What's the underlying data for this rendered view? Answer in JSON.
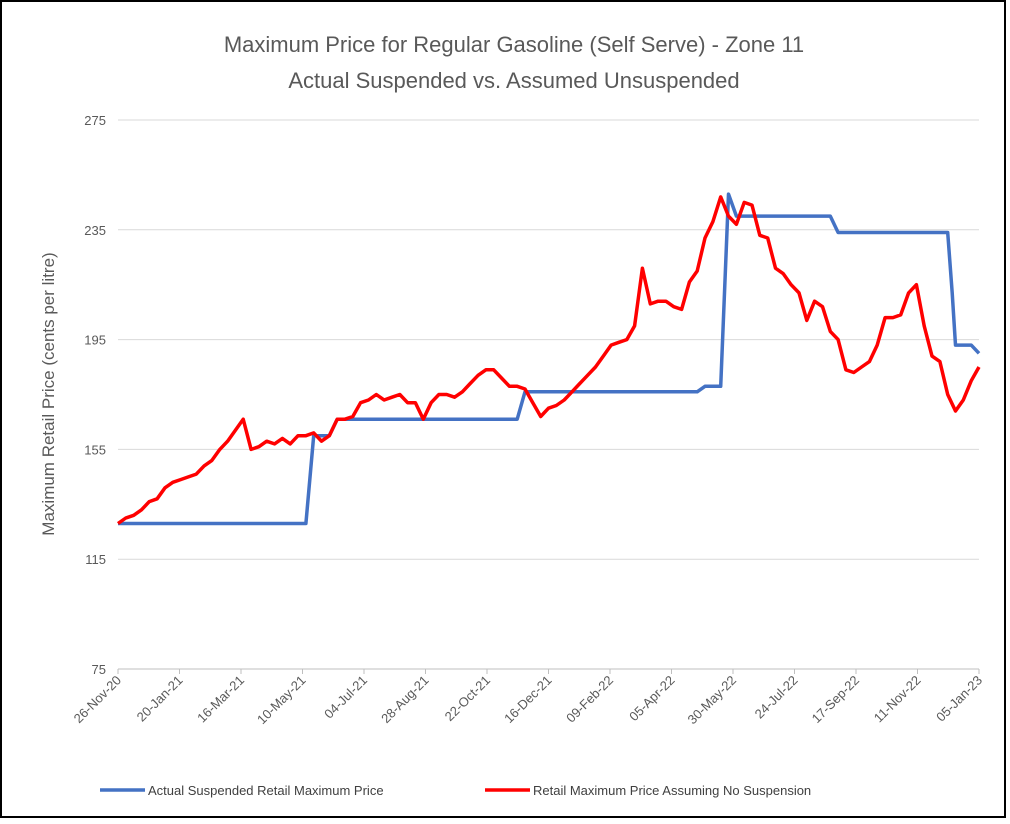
{
  "chart_data": {
    "type": "line",
    "title": "Maximum Price for Regular Gasoline (Self Serve) - Zone 11",
    "subtitle": "Actual Suspended vs. Assumed Unsuspended",
    "y_label": "Maximum Retail Price (cents per litre)",
    "xlim": [
      "2020-11-26",
      "2023-01-05"
    ],
    "xticks": [
      {
        "value": "2020-11-26",
        "label": "26-Nov-20"
      },
      {
        "value": "2021-01-20",
        "label": "20-Jan-21"
      },
      {
        "value": "2021-03-16",
        "label": "16-Mar-21"
      },
      {
        "value": "2021-05-10",
        "label": "10-May-21"
      },
      {
        "value": "2021-07-04",
        "label": "04-Jul-21"
      },
      {
        "value": "2021-08-28",
        "label": "28-Aug-21"
      },
      {
        "value": "2021-10-22",
        "label": "22-Oct-21"
      },
      {
        "value": "2021-12-16",
        "label": "16-Dec-21"
      },
      {
        "value": "2022-02-09",
        "label": "09-Feb-22"
      },
      {
        "value": "2022-04-05",
        "label": "05-Apr-22"
      },
      {
        "value": "2022-05-30",
        "label": "30-May-22"
      },
      {
        "value": "2022-07-24",
        "label": "24-Jul-22"
      },
      {
        "value": "2022-09-17",
        "label": "17-Sep-22"
      },
      {
        "value": "2022-11-11",
        "label": "11-Nov-22"
      },
      {
        "value": "2023-01-05",
        "label": "05-Jan-23"
      }
    ],
    "ylim": [
      75,
      275
    ],
    "yticks": [
      75,
      115,
      155,
      195,
      235,
      275
    ],
    "grid": true,
    "series": [
      {
        "name": "Actual Suspended Retail Maximum Price",
        "color": "#4472c4",
        "x": [
          "2020-11-26",
          "2021-05-13",
          "2021-05-20",
          "2021-06-03",
          "2021-06-10",
          "2021-11-18",
          "2021-11-25",
          "2022-04-28",
          "2022-05-05",
          "2022-05-19",
          "2022-05-26",
          "2022-06-02",
          "2022-08-25",
          "2022-09-01",
          "2022-12-08",
          "2022-12-12",
          "2022-12-15",
          "2022-12-29",
          "2023-01-05"
        ],
        "values": [
          128,
          128,
          160,
          160,
          166,
          166,
          176,
          176,
          178,
          178,
          248,
          240,
          240,
          234,
          234,
          212,
          193,
          193,
          190
        ]
      },
      {
        "name": "Retail Maximum Price Assuming No Suspension",
        "color": "#ff0000",
        "x": [
          "2020-11-26",
          "2020-12-03",
          "2020-12-10",
          "2020-12-17",
          "2020-12-24",
          "2020-12-31",
          "2021-01-07",
          "2021-01-14",
          "2021-01-21",
          "2021-01-28",
          "2021-02-04",
          "2021-02-11",
          "2021-02-18",
          "2021-02-25",
          "2021-03-04",
          "2021-03-11",
          "2021-03-18",
          "2021-03-25",
          "2021-04-01",
          "2021-04-08",
          "2021-04-15",
          "2021-04-22",
          "2021-04-29",
          "2021-05-06",
          "2021-05-13",
          "2021-05-20",
          "2021-05-27",
          "2021-06-03",
          "2021-06-10",
          "2021-06-17",
          "2021-06-24",
          "2021-07-01",
          "2021-07-08",
          "2021-07-15",
          "2021-07-22",
          "2021-07-29",
          "2021-08-05",
          "2021-08-12",
          "2021-08-19",
          "2021-08-26",
          "2021-09-02",
          "2021-09-09",
          "2021-09-16",
          "2021-09-23",
          "2021-09-30",
          "2021-10-07",
          "2021-10-14",
          "2021-10-21",
          "2021-10-28",
          "2021-11-04",
          "2021-11-11",
          "2021-11-18",
          "2021-11-25",
          "2021-12-02",
          "2021-12-09",
          "2021-12-16",
          "2021-12-23",
          "2021-12-30",
          "2022-01-06",
          "2022-01-13",
          "2022-01-20",
          "2022-01-27",
          "2022-02-03",
          "2022-02-10",
          "2022-02-17",
          "2022-02-24",
          "2022-03-03",
          "2022-03-10",
          "2022-03-17",
          "2022-03-24",
          "2022-03-31",
          "2022-04-07",
          "2022-04-14",
          "2022-04-21",
          "2022-04-28",
          "2022-05-05",
          "2022-05-12",
          "2022-05-19",
          "2022-05-26",
          "2022-06-02",
          "2022-06-09",
          "2022-06-16",
          "2022-06-23",
          "2022-06-30",
          "2022-07-07",
          "2022-07-14",
          "2022-07-21",
          "2022-07-28",
          "2022-08-04",
          "2022-08-11",
          "2022-08-18",
          "2022-08-25",
          "2022-09-01",
          "2022-09-08",
          "2022-09-15",
          "2022-09-22",
          "2022-09-29",
          "2022-10-06",
          "2022-10-13",
          "2022-10-20",
          "2022-10-27",
          "2022-11-03",
          "2022-11-10",
          "2022-11-17",
          "2022-11-24",
          "2022-12-01",
          "2022-12-08",
          "2022-12-15",
          "2022-12-22",
          "2022-12-29",
          "2023-01-05"
        ],
        "values": [
          128,
          130,
          131,
          133,
          136,
          137,
          141,
          143,
          144,
          145,
          146,
          149,
          151,
          155,
          158,
          162,
          166,
          155,
          156,
          158,
          157,
          159,
          157,
          160,
          160,
          161,
          158,
          160,
          166,
          166,
          167,
          172,
          173,
          175,
          173,
          174,
          175,
          172,
          172,
          166,
          172,
          175,
          175,
          174,
          176,
          179,
          182,
          184,
          184,
          181,
          178,
          178,
          177,
          172,
          167,
          170,
          171,
          173,
          176,
          179,
          182,
          185,
          189,
          193,
          194,
          195,
          200,
          221,
          208,
          209,
          209,
          207,
          206,
          216,
          220,
          232,
          238,
          247,
          240,
          237,
          245,
          244,
          233,
          232,
          221,
          219,
          215,
          212,
          202,
          209,
          207,
          198,
          195,
          184,
          183,
          185,
          187,
          193,
          203,
          203,
          204,
          212,
          215,
          200,
          189,
          187,
          175,
          169,
          173,
          180,
          185
        ]
      }
    ]
  }
}
